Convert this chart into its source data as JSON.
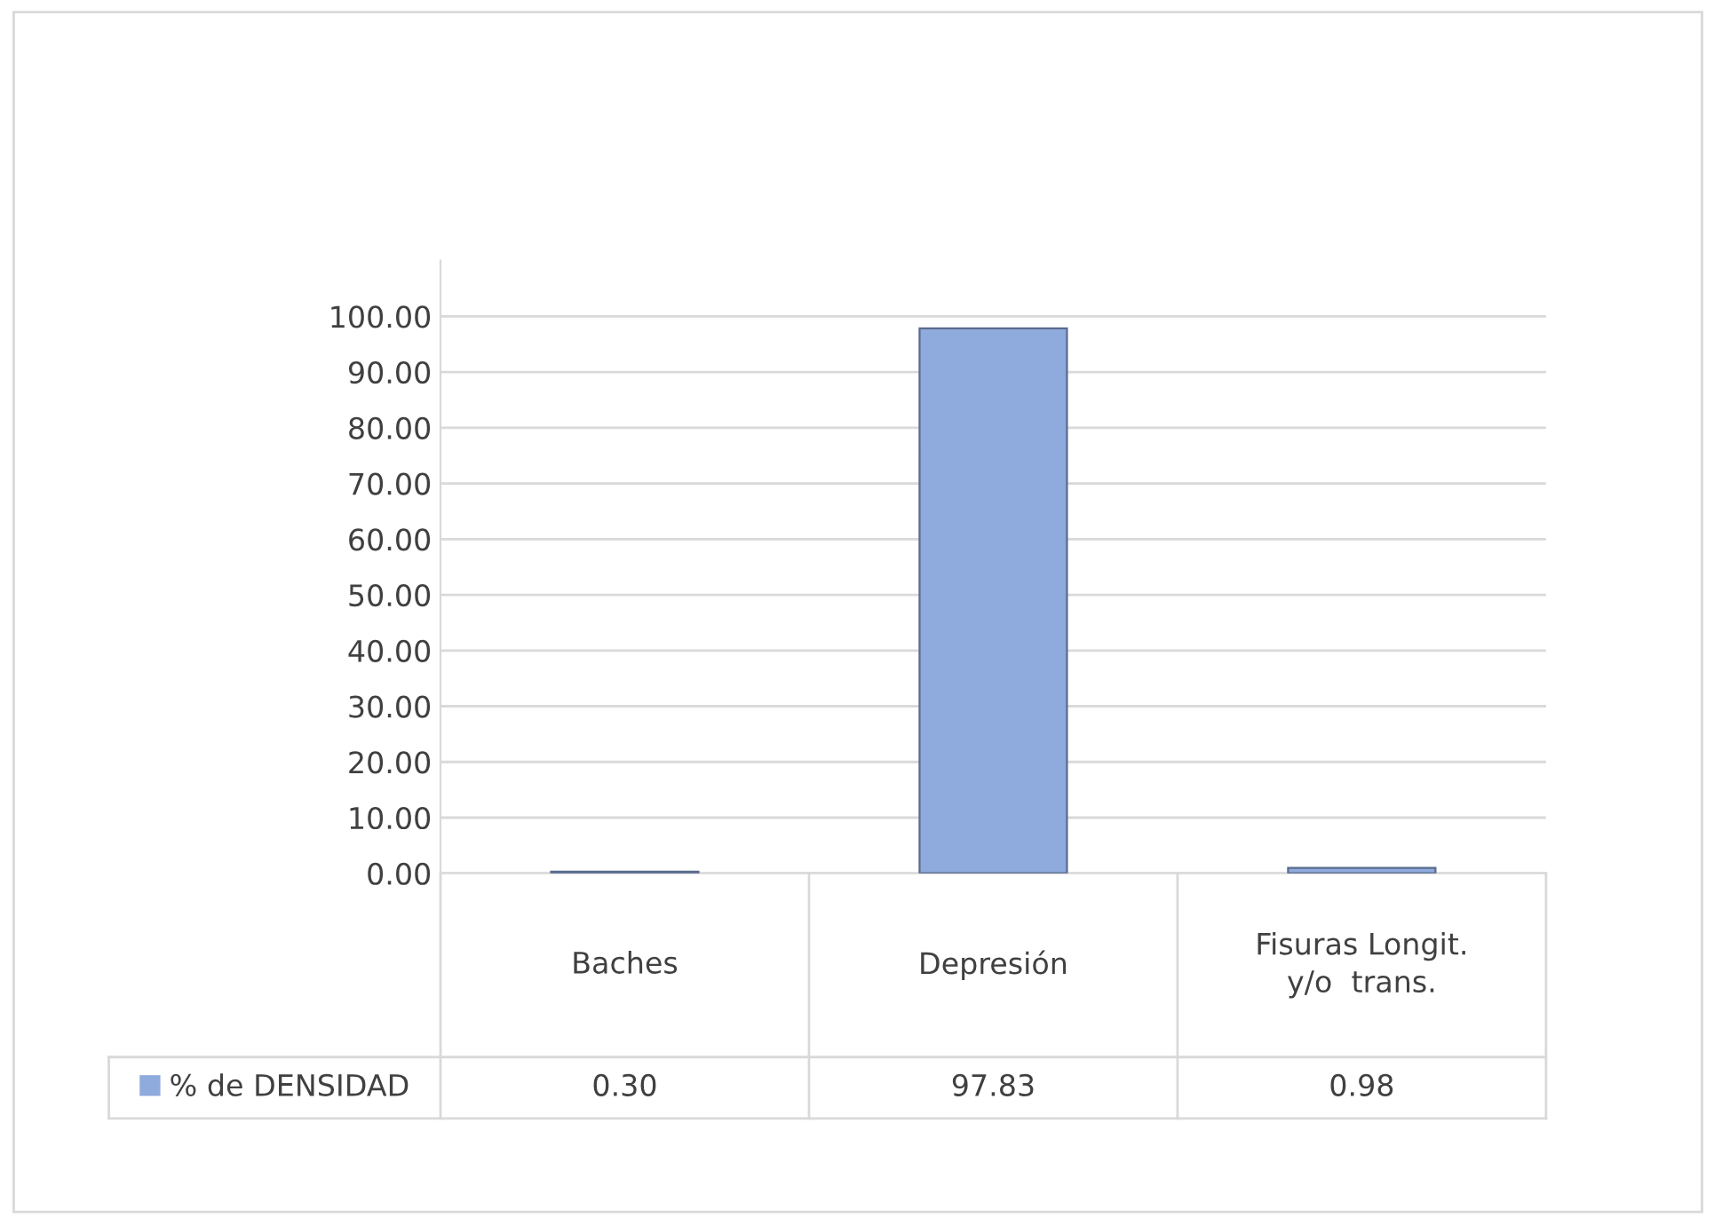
{
  "chart_data": {
    "type": "bar",
    "categories": [
      "Baches",
      "Depresión",
      "Fisuras Longit.\ny/o  trans."
    ],
    "series": [
      {
        "name": "% de DENSIDAD",
        "color": "#8faadc",
        "values": [
          0.3,
          97.83,
          0.98
        ],
        "value_labels": [
          "0.30",
          "97.83",
          "0.98"
        ]
      }
    ],
    "ylim": [
      0,
      110
    ],
    "yticks": [
      {
        "value": 0,
        "label": "0.00"
      },
      {
        "value": 10,
        "label": "10.00"
      },
      {
        "value": 20,
        "label": "20.00"
      },
      {
        "value": 30,
        "label": "30.00"
      },
      {
        "value": 40,
        "label": "40.00"
      },
      {
        "value": 50,
        "label": "50.00"
      },
      {
        "value": 60,
        "label": "60.00"
      },
      {
        "value": 70,
        "label": "70.00"
      },
      {
        "value": 80,
        "label": "80.00"
      },
      {
        "value": 90,
        "label": "90.00"
      },
      {
        "value": 100,
        "label": "100.00"
      }
    ],
    "grid": "y",
    "legend": "bottom"
  }
}
